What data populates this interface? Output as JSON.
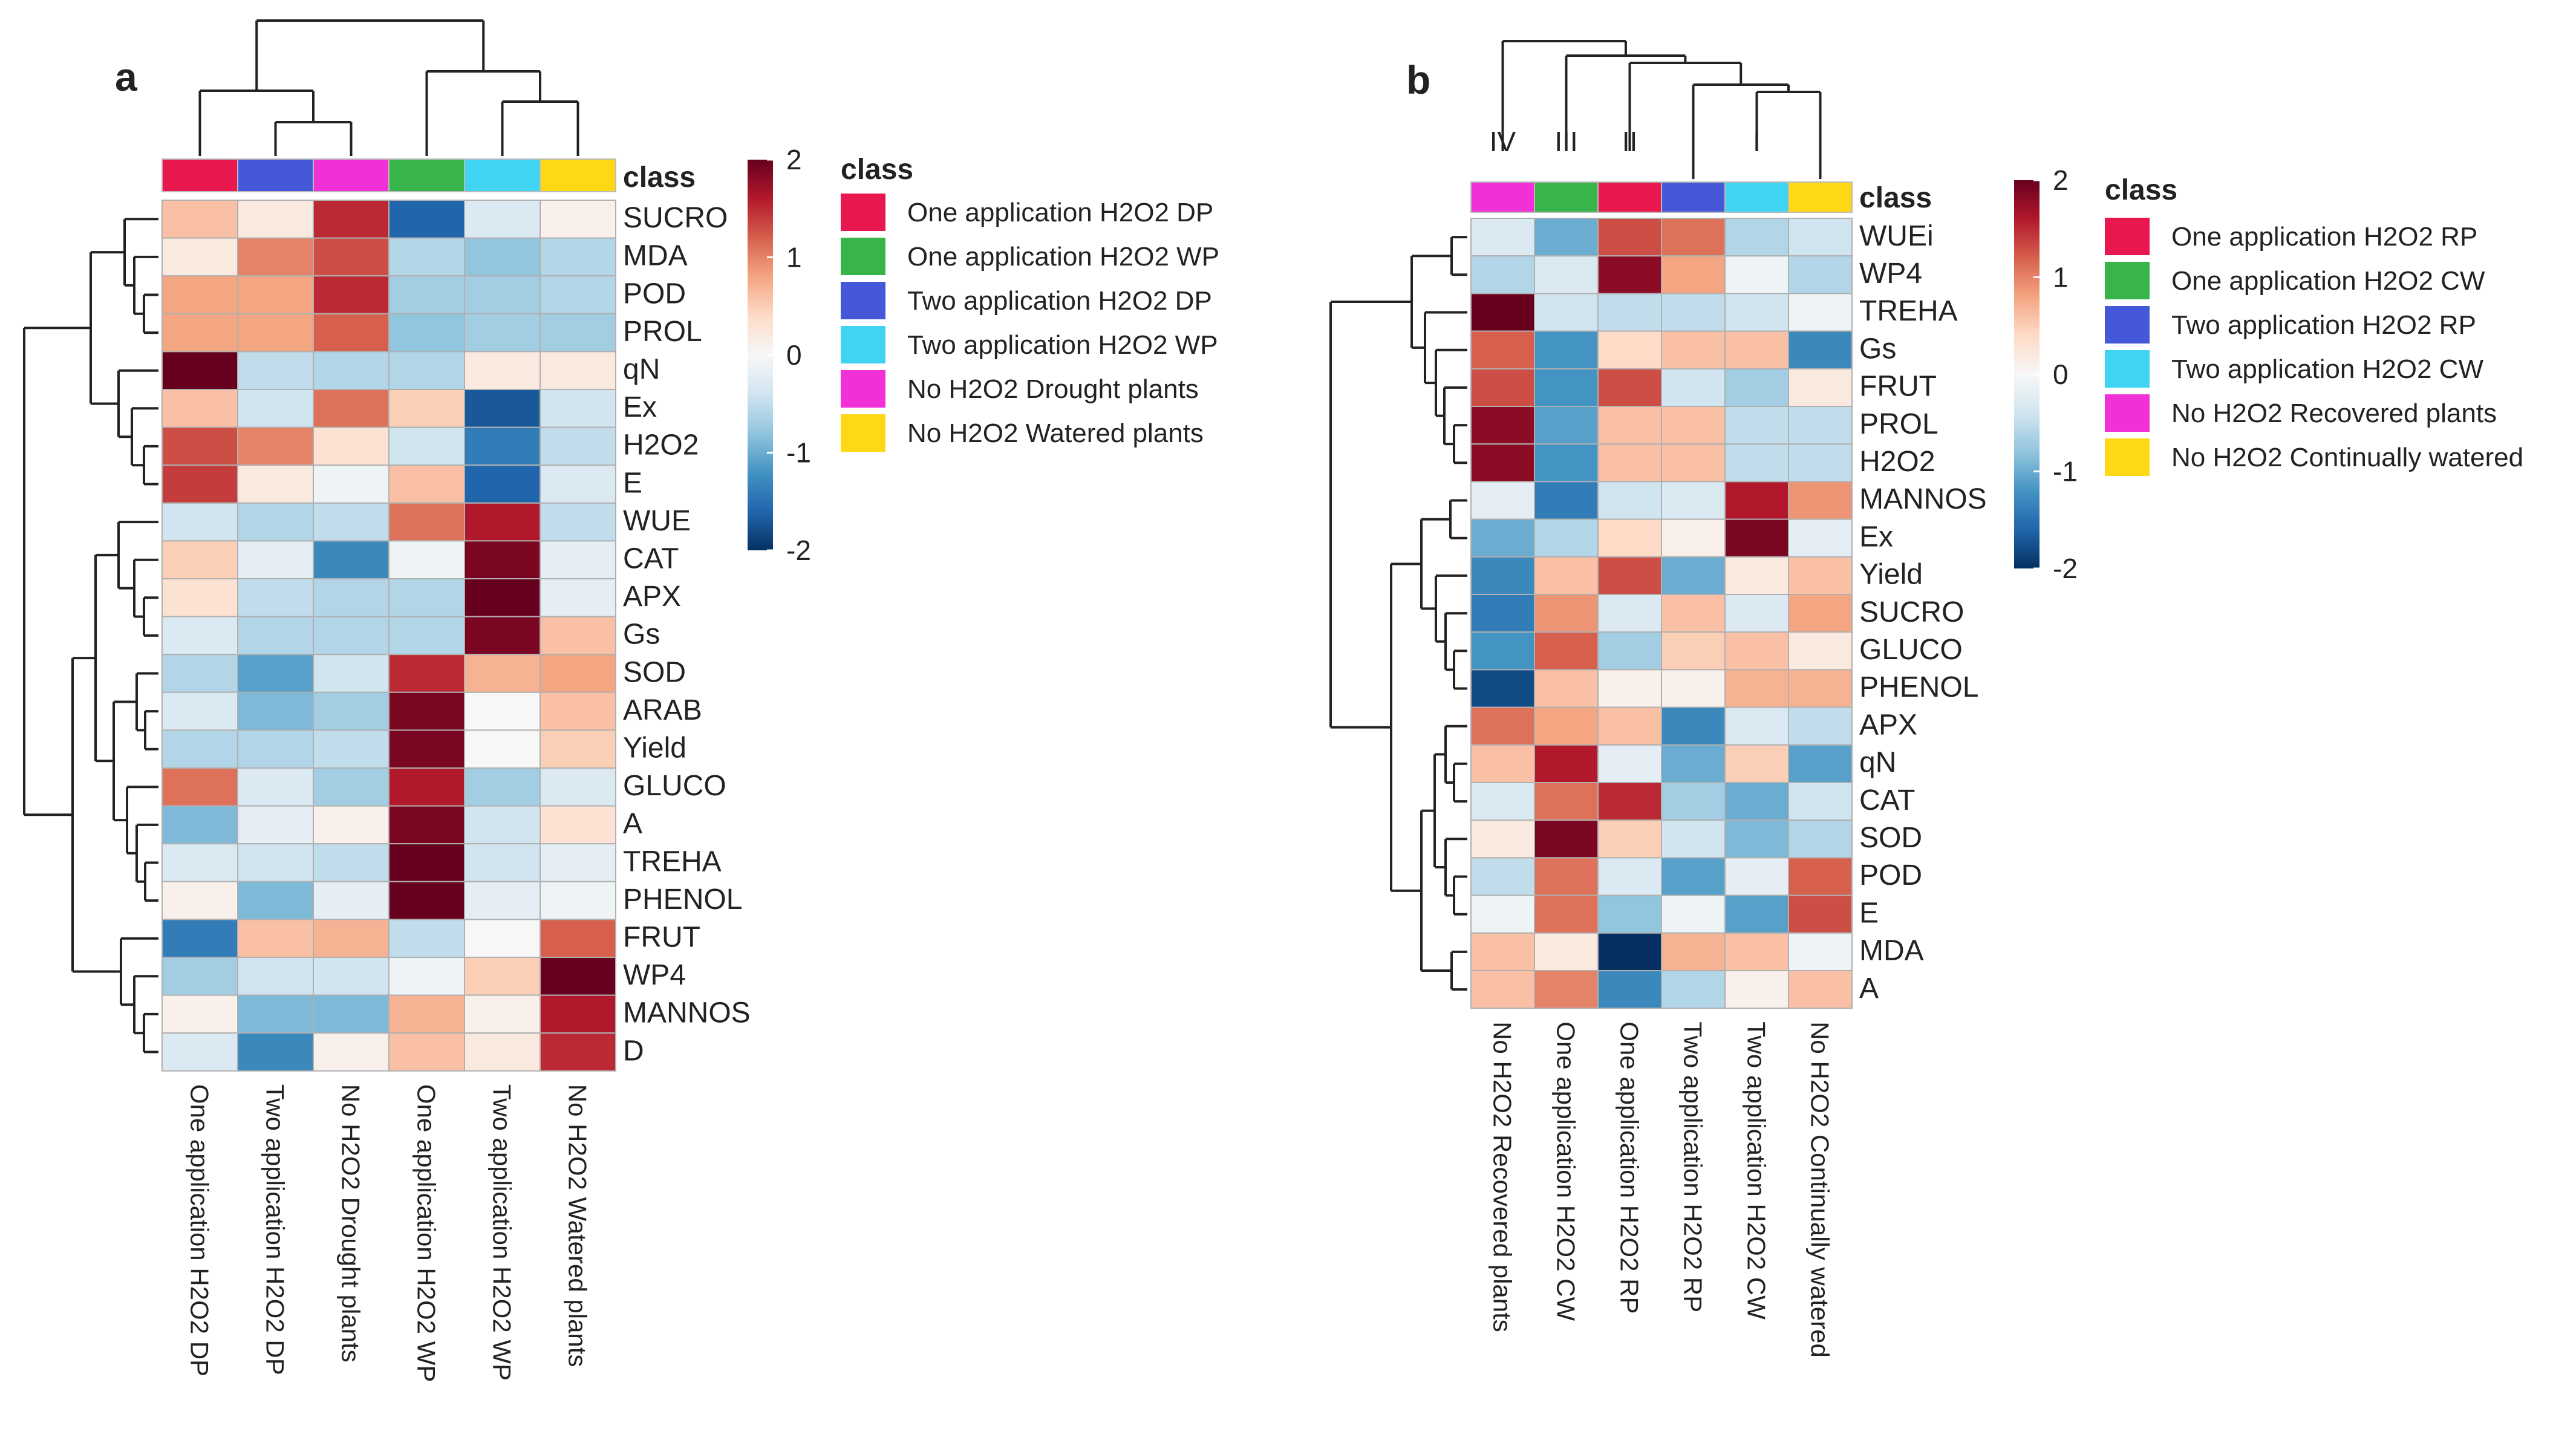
{
  "colors": {
    "scale": [
      "#053061",
      "#2166ac",
      "#4393c3",
      "#92c5de",
      "#d1e5f0",
      "#f7f7f7",
      "#fddbc7",
      "#f4a582",
      "#d6604d",
      "#b2182b",
      "#67001f"
    ]
  },
  "chart_data": [
    {
      "type": "heatmap",
      "panel_label": "a",
      "annotation_label": "class",
      "legend_title": "class",
      "colorbar_ticks": [
        2,
        1,
        0,
        -1,
        -2
      ],
      "value_range": [
        -2,
        2
      ],
      "columns": [
        "One application H2O2 DP",
        "Two application H2O2 DP",
        "No H2O2 Drought plants",
        "One application H2O2 WP",
        "Two application H2O2 WP",
        "No H2O2 Watered plants"
      ],
      "column_class_colors": [
        "#e8174d",
        "#4458d8",
        "#f230d7",
        "#38b54a",
        "#40d4f2",
        "#ffd815"
      ],
      "legend": [
        {
          "label": "One application H2O2 DP",
          "color": "#e8174d"
        },
        {
          "label": "One application H2O2 WP",
          "color": "#38b54a"
        },
        {
          "label": "Two application H2O2 DP",
          "color": "#4458d8"
        },
        {
          "label": "Two application H2O2 WP",
          "color": "#40d4f2"
        },
        {
          "label": "No H2O2 Drought plants",
          "color": "#f230d7"
        },
        {
          "label": "No H2O2 Watered plants",
          "color": "#ffd815"
        }
      ],
      "rows": [
        "SUCRO",
        "MDA",
        "POD",
        "PROL",
        "qN",
        "Ex",
        "H2O2",
        "E",
        "WUE",
        "CAT",
        "APX",
        "Gs",
        "SOD",
        "ARAB",
        "Yield",
        "GLUCO",
        "A",
        "TREHA",
        "PHENOL",
        "FRUT",
        "WP4",
        "MANNOS",
        "D"
      ],
      "values": [
        [
          0.6,
          0.2,
          1.5,
          -1.6,
          -0.3,
          0.1
        ],
        [
          0.2,
          1.0,
          1.3,
          -0.6,
          -0.8,
          -0.6
        ],
        [
          0.8,
          0.8,
          1.5,
          -0.7,
          -0.7,
          -0.6
        ],
        [
          0.8,
          0.8,
          1.2,
          -0.8,
          -0.7,
          -0.7
        ],
        [
          2.0,
          -0.5,
          -0.6,
          -0.6,
          0.2,
          0.2
        ],
        [
          0.6,
          -0.4,
          1.1,
          0.5,
          -1.7,
          -0.4
        ],
        [
          1.3,
          1.0,
          0.3,
          -0.4,
          -1.4,
          -0.5
        ],
        [
          1.4,
          0.2,
          -0.1,
          0.6,
          -1.6,
          -0.3
        ],
        [
          -0.4,
          -0.6,
          -0.5,
          1.1,
          1.6,
          -0.5
        ],
        [
          0.5,
          -0.2,
          -1.3,
          -0.1,
          1.9,
          -0.2
        ],
        [
          0.3,
          -0.5,
          -0.6,
          -0.6,
          2.0,
          -0.2
        ],
        [
          -0.3,
          -0.6,
          -0.6,
          -0.6,
          1.9,
          0.6
        ],
        [
          -0.6,
          -1.1,
          -0.4,
          1.5,
          0.7,
          0.8
        ],
        [
          -0.3,
          -0.9,
          -0.7,
          1.9,
          0.0,
          0.6
        ],
        [
          -0.6,
          -0.6,
          -0.5,
          1.9,
          0.0,
          0.5
        ],
        [
          1.1,
          -0.3,
          -0.7,
          1.6,
          -0.7,
          -0.3
        ],
        [
          -0.9,
          -0.2,
          0.1,
          1.9,
          -0.4,
          0.3
        ],
        [
          -0.3,
          -0.4,
          -0.5,
          2.1,
          -0.4,
          -0.2
        ],
        [
          0.1,
          -0.9,
          -0.2,
          2.1,
          -0.2,
          -0.1
        ],
        [
          -1.4,
          0.6,
          0.7,
          -0.5,
          0.0,
          1.2
        ],
        [
          -0.7,
          -0.4,
          -0.4,
          -0.1,
          0.5,
          2.0
        ],
        [
          0.1,
          -0.9,
          -0.9,
          0.7,
          0.1,
          1.6
        ],
        [
          -0.3,
          -1.3,
          0.1,
          0.6,
          0.2,
          1.5
        ]
      ]
    },
    {
      "type": "heatmap",
      "panel_label": "b",
      "annotation_label": "class",
      "legend_title": "class",
      "cluster_labels": [
        "IV",
        "III",
        "II",
        "I"
      ],
      "colorbar_ticks": [
        2,
        1,
        0,
        -1,
        -2
      ],
      "value_range": [
        -2,
        2
      ],
      "columns": [
        "No H2O2 Recovered plants",
        "One application H2O2 CW",
        "One application H2O2 RP",
        "Two application H2O2 RP",
        "Two application H2O2 CW",
        "No H2O2 Continually watered"
      ],
      "column_class_colors": [
        "#f230d7",
        "#38b54a",
        "#e8174d",
        "#4458d8",
        "#40d4f2",
        "#ffd815"
      ],
      "legend": [
        {
          "label": "One application H2O2 RP",
          "color": "#e8174d"
        },
        {
          "label": "One application H2O2 CW",
          "color": "#38b54a"
        },
        {
          "label": "Two application H2O2 RP",
          "color": "#4458d8"
        },
        {
          "label": "Two application H2O2 CW",
          "color": "#40d4f2"
        },
        {
          "label": "No H2O2 Recovered plants",
          "color": "#f230d7"
        },
        {
          "label": "No H2O2 Continually watered",
          "color": "#ffd815"
        }
      ],
      "rows": [
        "WUEi",
        "WP4",
        "TREHA",
        "Gs",
        "FRUT",
        "PROL",
        "H2O2",
        "MANNOS",
        "Ex",
        "Yield",
        "SUCRO",
        "GLUCO",
        "PHENOL",
        "APX",
        "qN",
        "CAT",
        "SOD",
        "POD",
        "E",
        "MDA",
        "A"
      ],
      "values": [
        [
          -0.3,
          -1.0,
          1.3,
          1.1,
          -0.6,
          -0.4
        ],
        [
          -0.6,
          -0.3,
          1.8,
          0.8,
          -0.1,
          -0.6
        ],
        [
          2.1,
          -0.4,
          -0.5,
          -0.5,
          -0.4,
          -0.1
        ],
        [
          1.2,
          -1.2,
          0.4,
          0.6,
          0.6,
          -1.3
        ],
        [
          1.3,
          -1.2,
          1.3,
          -0.4,
          -0.7,
          0.2
        ],
        [
          1.8,
          -1.1,
          0.6,
          0.6,
          -0.5,
          -0.5
        ],
        [
          1.8,
          -1.2,
          0.6,
          0.6,
          -0.5,
          -0.5
        ],
        [
          -0.2,
          -1.4,
          -0.4,
          -0.3,
          1.6,
          0.9
        ],
        [
          -1.0,
          -0.6,
          0.4,
          0.1,
          1.9,
          -0.2
        ],
        [
          -1.3,
          0.6,
          1.3,
          -1.0,
          0.2,
          0.6
        ],
        [
          -1.4,
          0.9,
          -0.3,
          0.6,
          -0.3,
          0.8
        ],
        [
          -1.2,
          1.2,
          -0.7,
          0.5,
          0.6,
          0.2
        ],
        [
          -1.8,
          0.6,
          0.1,
          0.1,
          0.7,
          0.7
        ],
        [
          1.1,
          0.8,
          0.6,
          -1.3,
          -0.3,
          -0.5
        ],
        [
          0.6,
          1.6,
          -0.2,
          -1.0,
          0.5,
          -1.1
        ],
        [
          -0.3,
          1.1,
          1.5,
          -0.7,
          -1.0,
          -0.4
        ],
        [
          0.2,
          1.9,
          0.5,
          -0.4,
          -0.9,
          -0.6
        ],
        [
          -0.5,
          1.1,
          -0.3,
          -1.1,
          -0.2,
          1.2
        ],
        [
          -0.1,
          1.1,
          -0.8,
          -0.1,
          -1.1,
          1.3
        ],
        [
          0.6,
          0.2,
          -2.0,
          0.7,
          0.6,
          -0.1
        ],
        [
          0.6,
          1.0,
          -1.3,
          -0.6,
          0.1,
          0.6
        ]
      ]
    }
  ]
}
